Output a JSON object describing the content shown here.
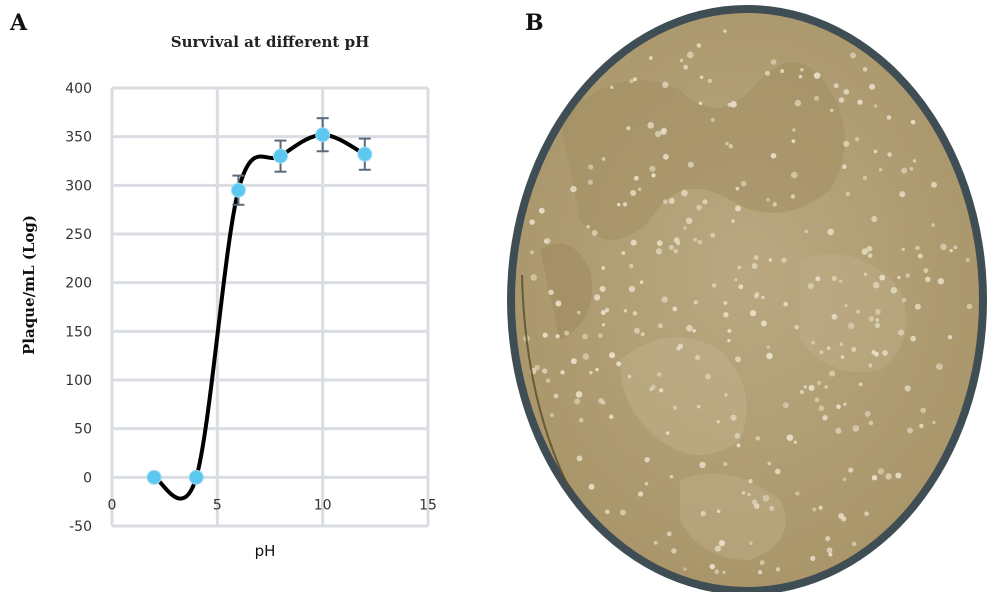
{
  "panels": {
    "a_label": "A",
    "b_label": "B"
  },
  "chart_data": {
    "type": "line",
    "title": "Survival at different pH",
    "xlabel": "pH",
    "ylabel": "Plaque/mL (Log)",
    "xlim": [
      0,
      15
    ],
    "ylim": [
      -50,
      400
    ],
    "xticks": [
      "0",
      "5",
      "10",
      "15"
    ],
    "yticks": [
      "-50",
      "0",
      "50",
      "100",
      "150",
      "200",
      "250",
      "300",
      "350",
      "400"
    ],
    "grid": true,
    "series": [
      {
        "x": [
          2,
          4,
          6,
          8,
          10,
          12
        ],
        "y": [
          0,
          0,
          295,
          330,
          352,
          332
        ],
        "error": [
          0,
          0,
          15,
          16,
          17,
          16
        ]
      }
    ],
    "colors": {
      "line": "#000000",
      "marker": "#5bc8f0",
      "errorbar": "#5a6a7a",
      "grid": "#d9dde2"
    }
  },
  "image": {
    "colors": {
      "rim": "#3a4a50",
      "agar": "#b5a27a"
    }
  }
}
